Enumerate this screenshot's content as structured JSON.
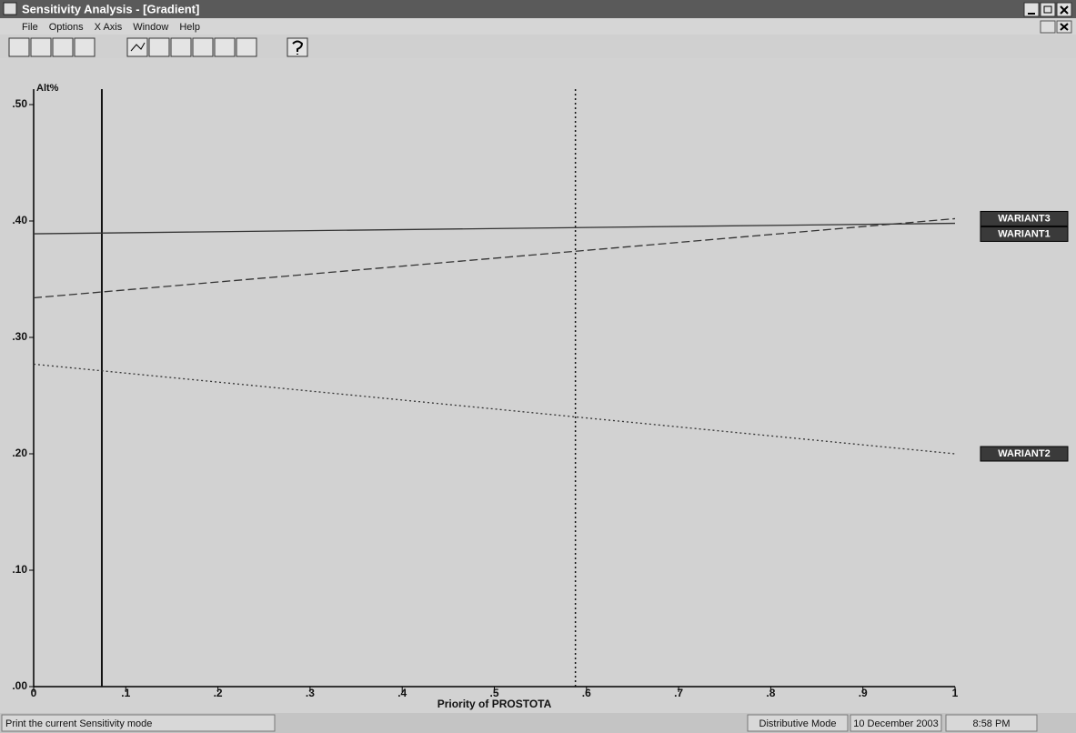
{
  "window": {
    "title": "Sensitivity Analysis - [Gradient]"
  },
  "menu": [
    "File",
    "Options",
    "X Axis",
    "Window",
    "Help"
  ],
  "status": [
    "Print the current Sensitivity mode",
    "Distributive Mode",
    "10 December 2003",
    "8:58 PM"
  ],
  "chart_data": {
    "type": "line",
    "y_label": "Alt%",
    "x_label": "Priority of PROSTOTA",
    "x": [
      0,
      1
    ],
    "series": [
      {
        "name": "WARIANT3",
        "color": "#333333",
        "dash": "dashed",
        "values": [
          0.334,
          0.402
        ]
      },
      {
        "name": "WARIANT1",
        "color": "#333333",
        "dash": "solid",
        "values": [
          0.389,
          0.398
        ]
      },
      {
        "name": "WARIANT2",
        "color": "#333333",
        "dash": "dotted",
        "values": [
          0.277,
          0.2
        ]
      }
    ],
    "reference_x": [
      0.074,
      0.588
    ],
    "xlim": [
      0,
      1
    ],
    "xticks": [
      0,
      {
        "value": 0.1,
        "label": ".1"
      },
      {
        "value": 0.2,
        "label": ".2"
      },
      {
        "value": 0.3,
        "label": ".3"
      },
      {
        "value": 0.4,
        "label": ".4"
      },
      {
        "value": 0.5,
        "label": ".5"
      },
      {
        "value": 0.6,
        "label": ".6"
      },
      {
        "value": 0.7,
        "label": ".7"
      },
      {
        "value": 0.8,
        "label": ".8"
      },
      {
        "value": 0.9,
        "label": ".9"
      },
      1
    ],
    "ylim": [
      0,
      0.5
    ],
    "yticks": [
      {
        "value": 0,
        "label": ".00"
      },
      {
        "value": 0.1,
        "label": ".10"
      },
      {
        "value": 0.2,
        "label": ".20"
      },
      {
        "value": 0.3,
        "label": ".30"
      },
      {
        "value": 0.4,
        "label": ".40"
      },
      {
        "value": 0.5,
        "label": ".50"
      }
    ]
  }
}
